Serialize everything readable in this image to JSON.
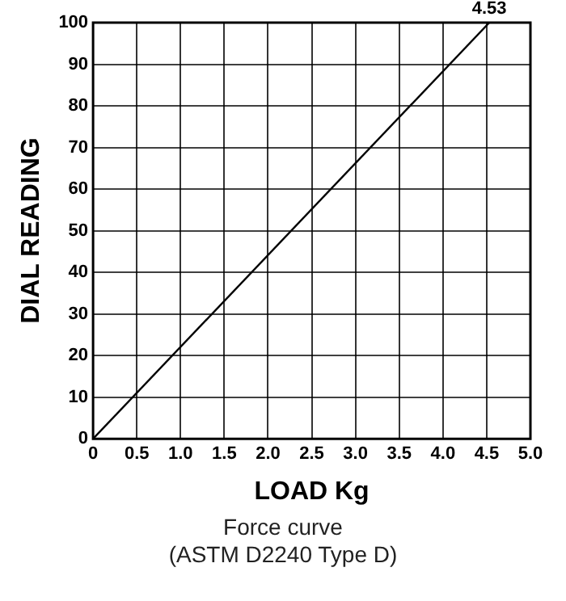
{
  "chart_data": {
    "type": "line",
    "x": [
      0,
      4.53
    ],
    "series": [
      {
        "color": "#000000",
        "values": [
          0,
          100
        ]
      }
    ],
    "xlabel": "LOAD Kg",
    "ylabel": "DIAL READING",
    "xlim": [
      0,
      5
    ],
    "xticks": [
      0,
      0.5,
      {
        "value": 1,
        "label": "1.0"
      },
      1.5,
      {
        "value": 2,
        "label": "2.0"
      },
      2.5,
      {
        "value": 3,
        "label": "3.0"
      },
      3.5,
      {
        "value": 4,
        "label": "4.0"
      },
      4.5,
      {
        "value": 5,
        "label": "5.0"
      }
    ],
    "ylim": [
      0,
      100
    ],
    "yticks": [
      0,
      10,
      20,
      30,
      40,
      50,
      60,
      70,
      80,
      90,
      100
    ],
    "grid": true,
    "legend": false,
    "marker": "none",
    "line_style": "solid",
    "annotations": [
      {
        "text": "4.53",
        "x": 4.53,
        "y": 100
      },
      "Force curve",
      "(ASTM D2240 Type D)"
    ]
  }
}
